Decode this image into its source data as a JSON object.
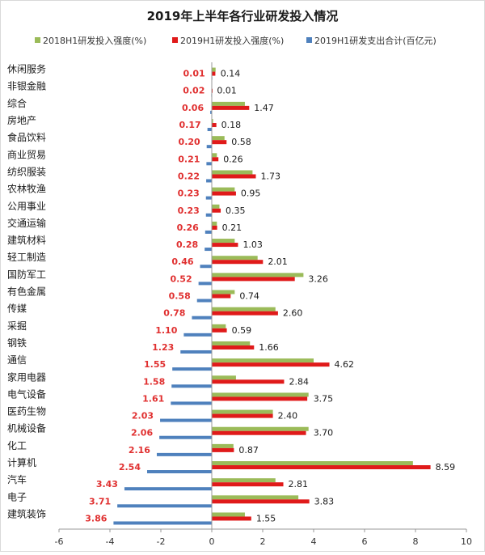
{
  "chart_data": {
    "type": "bar",
    "orientation": "horizontal",
    "title": "2019年上半年各行业研发投入情况",
    "categories": [
      "休闲服务",
      "非银金融",
      "综合",
      "房地产",
      "食品饮料",
      "商业贸易",
      "纺织服装",
      "农林牧渔",
      "公用事业",
      "交通运输",
      "建筑材料",
      "轻工制造",
      "国防军工",
      "有色金属",
      "传媒",
      "采掘",
      "钢铁",
      "通信",
      "家用电器",
      "电气设备",
      "医药生物",
      "机械设备",
      "化工",
      "计算机",
      "汽车",
      "电子",
      "建筑装饰"
    ],
    "series": [
      {
        "name": "2018H1研发投入强度(%)",
        "color": "#9bbb59",
        "values": [
          0.15,
          0.0,
          1.3,
          0.05,
          0.5,
          0.2,
          1.6,
          0.9,
          0.3,
          0.2,
          0.9,
          1.8,
          3.6,
          0.9,
          2.5,
          0.55,
          1.5,
          4.0,
          0.95,
          3.8,
          2.4,
          3.8,
          0.85,
          7.9,
          2.5,
          3.4,
          1.3
        ]
      },
      {
        "name": "2019H1研发投入强度(%)",
        "color": "#e01a1a",
        "values": [
          0.14,
          0.01,
          1.47,
          0.18,
          0.58,
          0.26,
          1.73,
          0.95,
          0.35,
          0.21,
          1.03,
          2.01,
          3.26,
          0.74,
          2.6,
          0.59,
          1.66,
          4.62,
          2.84,
          3.75,
          2.4,
          3.7,
          0.87,
          8.59,
          2.81,
          3.83,
          1.55
        ]
      },
      {
        "name": "2019H1研发支出合计(百亿元)",
        "color": "#4f81bd",
        "values": [
          0.01,
          0.02,
          0.06,
          0.17,
          0.2,
          0.21,
          0.22,
          0.23,
          0.23,
          0.26,
          0.28,
          0.46,
          0.52,
          0.58,
          0.78,
          1.1,
          1.23,
          1.55,
          1.58,
          1.61,
          2.03,
          2.06,
          2.16,
          2.54,
          3.43,
          3.71,
          3.86
        ]
      }
    ],
    "label_values": {
      "expense": [
        "0.01",
        "0.02",
        "0.06",
        "0.17",
        "0.20",
        "0.21",
        "0.22",
        "0.23",
        "0.23",
        "0.26",
        "0.28",
        "0.46",
        "0.52",
        "0.58",
        "0.78",
        "1.10",
        "1.23",
        "1.55",
        "1.58",
        "1.61",
        "2.03",
        "2.06",
        "2.16",
        "2.54",
        "3.43",
        "3.71",
        "3.86"
      ],
      "intensity_2019": [
        "0.14",
        "0.01",
        "1.47",
        "0.18",
        "0.58",
        "0.26",
        "1.73",
        "0.95",
        "0.35",
        "0.21",
        "1.03",
        "2.01",
        "3.26",
        "0.74",
        "2.60",
        "0.59",
        "1.66",
        "4.62",
        "2.84",
        "3.75",
        "2.40",
        "3.70",
        "0.87",
        "8.59",
        "2.81",
        "3.83",
        "1.55"
      ]
    },
    "xlim": [
      -6,
      10
    ],
    "xticks": [
      "-6",
      "-4",
      "-2",
      "0",
      "2",
      "4",
      "6",
      "8",
      "10"
    ],
    "xtick_values": [
      -6,
      -4,
      -2,
      0,
      2,
      4,
      6,
      8,
      10
    ],
    "grid": false,
    "legend_placement": "top"
  }
}
